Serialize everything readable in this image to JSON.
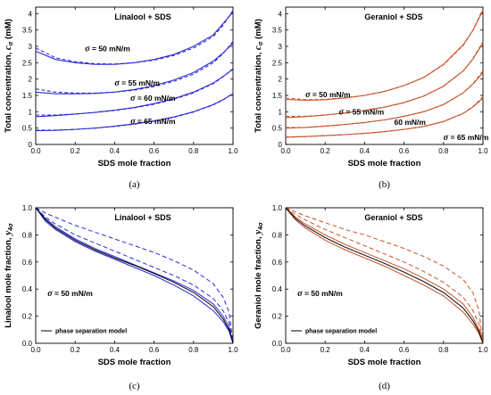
{
  "chart_data": [
    {
      "id": "a",
      "type": "line",
      "caption": "(a)",
      "title": "Linalool + SDS",
      "xlabel": "SDS mole fraction",
      "ylabel_prefix": "Total concentration, ",
      "ylabel_symbol": "c",
      "ylabel_sub": "σ",
      "ylabel_suffix": " (mM)",
      "xlim": [
        0,
        1
      ],
      "ylim": [
        0,
        4.2
      ],
      "xticks": [
        "0.0",
        "0.2",
        "0.4",
        "0.6",
        "0.8",
        "1.0"
      ],
      "yticks": [
        "0",
        "0.5",
        "1",
        "1.5",
        "2",
        "2.5",
        "3",
        "3.5",
        "4"
      ],
      "ytick_values": [
        0,
        0.5,
        1,
        1.5,
        2,
        2.5,
        3,
        3.5,
        4
      ],
      "color": "#2b2bd6",
      "series": [
        {
          "x": [
            0,
            0.1,
            0.2,
            0.3,
            0.4,
            0.5,
            0.6,
            0.7,
            0.8,
            0.9,
            0.95,
            1.0
          ],
          "solid": [
            2.85,
            2.6,
            2.5,
            2.45,
            2.45,
            2.5,
            2.6,
            2.75,
            3.0,
            3.35,
            3.7,
            4.05
          ],
          "dashed": [
            2.95,
            2.65,
            2.53,
            2.47,
            2.46,
            2.5,
            2.58,
            2.72,
            2.95,
            3.3,
            3.65,
            4.1
          ]
        },
        {
          "x": [
            0,
            0.1,
            0.2,
            0.3,
            0.4,
            0.5,
            0.6,
            0.7,
            0.8,
            0.9,
            0.95,
            1.0
          ],
          "solid": [
            1.6,
            1.55,
            1.55,
            1.56,
            1.6,
            1.68,
            1.8,
            1.97,
            2.2,
            2.55,
            2.8,
            3.1
          ],
          "dashed": [
            1.7,
            1.6,
            1.57,
            1.57,
            1.6,
            1.66,
            1.77,
            1.93,
            2.15,
            2.5,
            2.78,
            3.15
          ]
        },
        {
          "x": [
            0,
            0.1,
            0.2,
            0.3,
            0.4,
            0.5,
            0.6,
            0.7,
            0.8,
            0.9,
            0.95,
            1.0
          ],
          "solid": [
            0.85,
            0.88,
            0.93,
            0.98,
            1.05,
            1.13,
            1.25,
            1.4,
            1.6,
            1.88,
            2.08,
            2.3
          ],
          "dashed": [
            0.9,
            0.9,
            0.93,
            0.98,
            1.04,
            1.12,
            1.23,
            1.38,
            1.58,
            1.86,
            2.07,
            2.32
          ]
        },
        {
          "x": [
            0,
            0.1,
            0.2,
            0.3,
            0.4,
            0.5,
            0.6,
            0.7,
            0.8,
            0.9,
            0.95,
            1.0
          ],
          "solid": [
            0.42,
            0.43,
            0.46,
            0.5,
            0.56,
            0.63,
            0.72,
            0.84,
            1.0,
            1.22,
            1.37,
            1.55
          ],
          "dashed": [
            0.44,
            0.44,
            0.46,
            0.5,
            0.55,
            0.62,
            0.71,
            0.83,
            0.99,
            1.21,
            1.36,
            1.57
          ]
        }
      ],
      "annotations": [
        {
          "sym": "σ",
          "text": " = 50 mN/m",
          "x": 0.25,
          "y": 2.85
        },
        {
          "sym": "σ",
          "text": " = 55 mN/m",
          "x": 0.4,
          "y": 1.8
        },
        {
          "sym": "σ",
          "text": " = 60 mN/m",
          "x": 0.48,
          "y": 1.33
        },
        {
          "sym": "σ",
          "text": " = 65 mN/m",
          "x": 0.48,
          "y": 0.63
        }
      ]
    },
    {
      "id": "b",
      "type": "line",
      "caption": "(b)",
      "title": "Geraniol + SDS",
      "xlabel": "SDS mole fraction",
      "ylabel_prefix": "Total concentration, ",
      "ylabel_symbol": "c",
      "ylabel_sub": "σ",
      "ylabel_suffix": " (mM)",
      "xlim": [
        0,
        1
      ],
      "ylim": [
        0,
        4.2
      ],
      "xticks": [
        "0.0",
        "0.2",
        "0.4",
        "0.6",
        "0.8",
        "1.0"
      ],
      "yticks": [
        "0",
        "0.5",
        "1",
        "1.5",
        "2",
        "2.5",
        "3",
        "3.5",
        "4"
      ],
      "ytick_values": [
        0,
        0.5,
        1,
        1.5,
        2,
        2.5,
        3,
        3.5,
        4
      ],
      "color": "#c8532c",
      "series": [
        {
          "x": [
            0,
            0.1,
            0.2,
            0.3,
            0.4,
            0.5,
            0.6,
            0.7,
            0.8,
            0.9,
            0.95,
            1.0
          ],
          "solid": [
            1.38,
            1.35,
            1.37,
            1.42,
            1.5,
            1.62,
            1.8,
            2.05,
            2.45,
            3.05,
            3.5,
            4.1
          ],
          "dashed": [
            1.42,
            1.37,
            1.38,
            1.43,
            1.5,
            1.62,
            1.8,
            2.05,
            2.44,
            3.03,
            3.5,
            4.15
          ]
        },
        {
          "x": [
            0,
            0.1,
            0.2,
            0.3,
            0.4,
            0.5,
            0.6,
            0.7,
            0.8,
            0.9,
            0.95,
            1.0
          ],
          "solid": [
            0.82,
            0.85,
            0.9,
            0.96,
            1.04,
            1.14,
            1.28,
            1.48,
            1.78,
            2.25,
            2.62,
            3.1
          ],
          "dashed": [
            0.86,
            0.86,
            0.9,
            0.96,
            1.04,
            1.14,
            1.28,
            1.48,
            1.78,
            2.25,
            2.63,
            3.15
          ]
        },
        {
          "x": [
            0,
            0.1,
            0.2,
            0.3,
            0.4,
            0.5,
            0.6,
            0.7,
            0.8,
            0.9,
            0.95,
            1.0
          ],
          "solid": [
            0.5,
            0.52,
            0.56,
            0.61,
            0.67,
            0.75,
            0.86,
            1.0,
            1.22,
            1.58,
            1.85,
            2.2
          ],
          "dashed": [
            0.52,
            0.52,
            0.56,
            0.61,
            0.67,
            0.75,
            0.86,
            1.0,
            1.22,
            1.58,
            1.86,
            2.25
          ]
        },
        {
          "x": [
            0,
            0.1,
            0.2,
            0.3,
            0.4,
            0.5,
            0.6,
            0.7,
            0.8,
            0.9,
            0.95,
            1.0
          ],
          "solid": [
            0.22,
            0.24,
            0.27,
            0.3,
            0.34,
            0.39,
            0.46,
            0.55,
            0.7,
            0.95,
            1.15,
            1.42
          ],
          "dashed": [
            0.23,
            0.24,
            0.27,
            0.3,
            0.34,
            0.39,
            0.46,
            0.55,
            0.7,
            0.95,
            1.16,
            1.46
          ]
        }
      ],
      "annotations": [
        {
          "sym": "σ",
          "text": " = 50 mN/m",
          "x": 0.1,
          "y": 1.45
        },
        {
          "sym": "σ",
          "text": " = 55 mN/m",
          "x": 0.27,
          "y": 0.92
        },
        {
          "sym": "",
          "text": "60 mN/m",
          "x": 0.55,
          "y": 0.6
        },
        {
          "sym": "σ",
          "text": " = 65 mN/m",
          "x": 0.8,
          "y": 0.13
        }
      ]
    },
    {
      "id": "c",
      "type": "line",
      "caption": "(c)",
      "title": "Linalool + SDS",
      "xlabel": "SDS mole fraction",
      "ylabel_prefix": "Linalool mole fraction, ",
      "ylabel_symbol": "y",
      "ylabel_sub": "4σ",
      "ylabel_suffix": "",
      "xlim": [
        0,
        1
      ],
      "ylim": [
        0,
        1
      ],
      "xticks": [
        "0.0",
        "0.2",
        "0.4",
        "0.6",
        "0.8",
        "1.0"
      ],
      "yticks": [
        "0.0",
        "0.2",
        "0.4",
        "0.6",
        "0.8",
        "1.0"
      ],
      "ytick_values": [
        0,
        0.2,
        0.4,
        0.6,
        0.8,
        1.0
      ],
      "color": "#2b2bd6",
      "series": [
        {
          "style": "solid",
          "color": "#2b2bd6",
          "x": [
            0,
            0.05,
            0.1,
            0.2,
            0.3,
            0.4,
            0.5,
            0.6,
            0.7,
            0.8,
            0.9,
            0.95,
            0.98,
            1.0
          ],
          "y": [
            1,
            0.9,
            0.84,
            0.75,
            0.68,
            0.62,
            0.56,
            0.5,
            0.43,
            0.35,
            0.24,
            0.16,
            0.09,
            0
          ]
        },
        {
          "style": "solid",
          "color": "#2b2bd6",
          "x": [
            0,
            0.05,
            0.1,
            0.2,
            0.3,
            0.4,
            0.5,
            0.6,
            0.7,
            0.8,
            0.9,
            0.95,
            0.98,
            1.0
          ],
          "y": [
            1,
            0.92,
            0.86,
            0.77,
            0.7,
            0.64,
            0.58,
            0.52,
            0.46,
            0.39,
            0.29,
            0.2,
            0.12,
            0
          ]
        },
        {
          "style": "dashed",
          "color": "#2b2bd6",
          "x": [
            0,
            0.05,
            0.1,
            0.2,
            0.3,
            0.4,
            0.5,
            0.6,
            0.7,
            0.8,
            0.9,
            0.95,
            0.98,
            1.0
          ],
          "y": [
            1,
            0.93,
            0.88,
            0.8,
            0.74,
            0.68,
            0.62,
            0.56,
            0.5,
            0.43,
            0.33,
            0.24,
            0.15,
            0
          ]
        },
        {
          "style": "dashed",
          "color": "#2b2bd6",
          "x": [
            0,
            0.05,
            0.1,
            0.2,
            0.3,
            0.4,
            0.5,
            0.6,
            0.7,
            0.8,
            0.9,
            0.95,
            0.98,
            1.0
          ],
          "y": [
            1,
            0.96,
            0.93,
            0.87,
            0.82,
            0.77,
            0.72,
            0.67,
            0.61,
            0.54,
            0.44,
            0.34,
            0.23,
            0
          ]
        },
        {
          "style": "solid",
          "color": "#000000",
          "x": [
            0,
            0.05,
            0.1,
            0.2,
            0.3,
            0.4,
            0.5,
            0.6,
            0.7,
            0.8,
            0.9,
            0.95,
            0.98,
            1.0
          ],
          "y": [
            1,
            0.91,
            0.85,
            0.76,
            0.69,
            0.63,
            0.575,
            0.515,
            0.45,
            0.375,
            0.27,
            0.18,
            0.1,
            0
          ]
        }
      ],
      "annotations": [
        {
          "sym": "σ",
          "text": " = 50 mN/m",
          "x": 0.06,
          "y": 0.35
        }
      ],
      "legend": {
        "label": "phase separation model"
      }
    },
    {
      "id": "d",
      "type": "line",
      "caption": "(d)",
      "title": "Geraniol + SDS",
      "xlabel": "SDS mole fraction",
      "ylabel_prefix": "Geraniol mole fraction, ",
      "ylabel_symbol": "y",
      "ylabel_sub": "4σ",
      "ylabel_suffix": "",
      "xlim": [
        0,
        1
      ],
      "ylim": [
        0,
        1
      ],
      "xticks": [
        "0.0",
        "0.2",
        "0.4",
        "0.6",
        "0.8",
        "1.0"
      ],
      "yticks": [
        "0.0",
        "0.2",
        "0.4",
        "0.6",
        "0.8",
        "1.0"
      ],
      "ytick_values": [
        0,
        0.2,
        0.4,
        0.6,
        0.8,
        1.0
      ],
      "color": "#c8532c",
      "series": [
        {
          "style": "solid",
          "color": "#c8532c",
          "x": [
            0,
            0.05,
            0.1,
            0.2,
            0.3,
            0.4,
            0.5,
            0.6,
            0.7,
            0.8,
            0.9,
            0.95,
            0.98,
            1.0
          ],
          "y": [
            1,
            0.91,
            0.85,
            0.76,
            0.69,
            0.63,
            0.57,
            0.5,
            0.43,
            0.35,
            0.23,
            0.14,
            0.07,
            0
          ]
        },
        {
          "style": "solid",
          "color": "#c8532c",
          "x": [
            0,
            0.05,
            0.1,
            0.2,
            0.3,
            0.4,
            0.5,
            0.6,
            0.7,
            0.8,
            0.9,
            0.95,
            0.98,
            1.0
          ],
          "y": [
            1,
            0.93,
            0.88,
            0.8,
            0.73,
            0.67,
            0.61,
            0.55,
            0.48,
            0.4,
            0.29,
            0.19,
            0.1,
            0
          ]
        },
        {
          "style": "dashed",
          "color": "#c8532c",
          "x": [
            0,
            0.05,
            0.1,
            0.2,
            0.3,
            0.4,
            0.5,
            0.6,
            0.7,
            0.8,
            0.9,
            0.95,
            0.98,
            1.0
          ],
          "y": [
            1,
            0.95,
            0.91,
            0.84,
            0.78,
            0.72,
            0.66,
            0.6,
            0.53,
            0.45,
            0.34,
            0.24,
            0.14,
            0
          ]
        },
        {
          "style": "dashed",
          "color": "#c8532c",
          "x": [
            0,
            0.05,
            0.1,
            0.2,
            0.3,
            0.4,
            0.5,
            0.6,
            0.7,
            0.8,
            0.9,
            0.95,
            0.98,
            1.0
          ],
          "y": [
            1,
            0.97,
            0.94,
            0.89,
            0.84,
            0.8,
            0.75,
            0.7,
            0.64,
            0.57,
            0.47,
            0.37,
            0.24,
            0
          ]
        },
        {
          "style": "solid",
          "color": "#000000",
          "x": [
            0,
            0.05,
            0.1,
            0.2,
            0.3,
            0.4,
            0.5,
            0.6,
            0.7,
            0.8,
            0.9,
            0.95,
            0.98,
            1.0
          ],
          "y": [
            1,
            0.92,
            0.865,
            0.78,
            0.71,
            0.65,
            0.59,
            0.525,
            0.455,
            0.375,
            0.26,
            0.165,
            0.085,
            0
          ]
        }
      ],
      "annotations": [
        {
          "sym": "σ",
          "text": " = 50 mN/m",
          "x": 0.06,
          "y": 0.35
        }
      ],
      "legend": {
        "label": "phase separation model"
      }
    }
  ]
}
